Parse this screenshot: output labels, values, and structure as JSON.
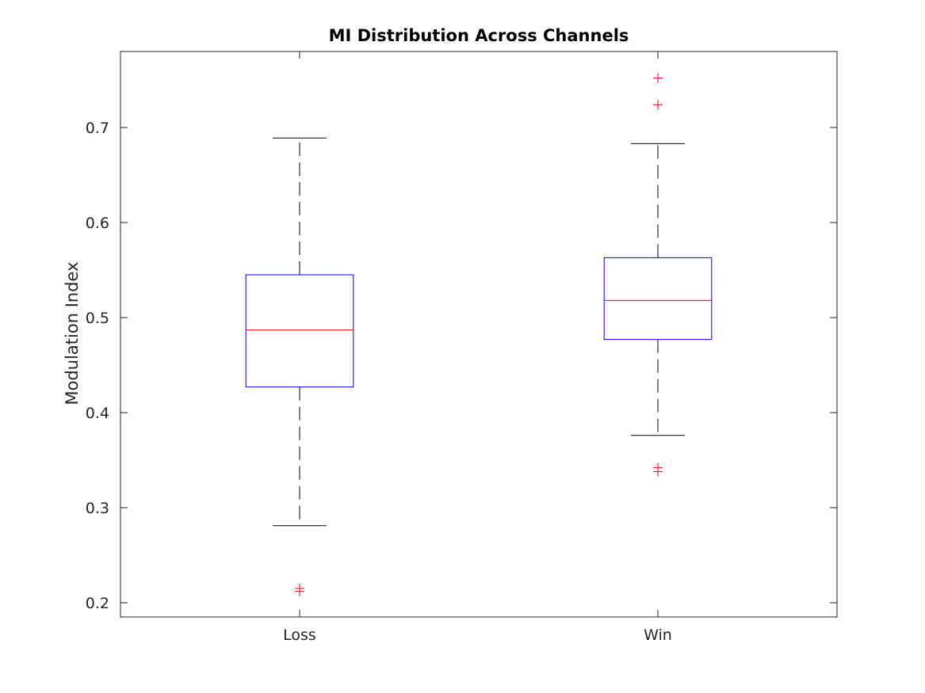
{
  "chart_data": {
    "type": "box",
    "title": "MI Distribution Across Channels",
    "xlabel": "",
    "ylabel": "Modulation Index",
    "categories": [
      "Loss",
      "Win"
    ],
    "ylim": [
      0.185,
      0.78
    ],
    "yticks": [
      0.2,
      0.3,
      0.4,
      0.5,
      0.6,
      0.7
    ],
    "ytick_labels": [
      "0.2",
      "0.3",
      "0.4",
      "0.5",
      "0.6",
      "0.7"
    ],
    "grid": false,
    "boxes": [
      {
        "category": "Loss",
        "whisker_low": 0.281,
        "q1": 0.427,
        "median": 0.487,
        "q3": 0.545,
        "whisker_high": 0.689,
        "outliers": [
          0.215,
          0.212
        ]
      },
      {
        "category": "Win",
        "whisker_low": 0.376,
        "q1": 0.477,
        "median": 0.518,
        "q3": 0.563,
        "whisker_high": 0.683,
        "outliers": [
          0.752,
          0.724,
          0.342,
          0.338
        ]
      }
    ],
    "colors": {
      "box": "#0000ff",
      "median": "#ff0000",
      "whisker": "#000000",
      "outlier": "#ff0000",
      "axis": "#262626"
    }
  }
}
